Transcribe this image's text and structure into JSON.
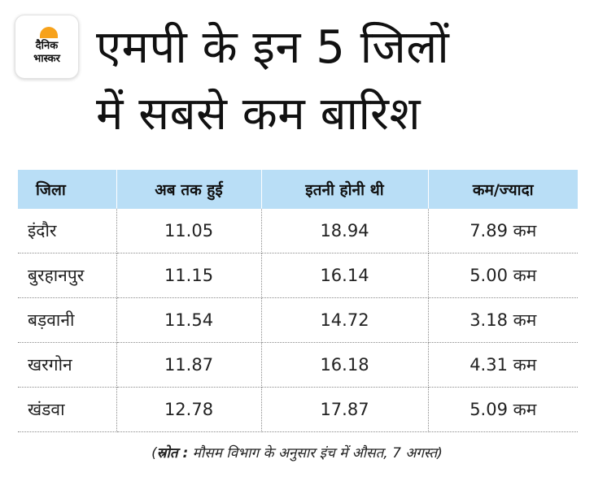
{
  "logo": {
    "line1": "दैनिक",
    "line2": "भास्कर",
    "accent": "#f7a21b"
  },
  "headline": {
    "line1": "एमपी के इन 5 जिलों",
    "line2": "में सबसे कम बारिश"
  },
  "table": {
    "header_color": "#b9def6",
    "columns": [
      "जिला",
      "अब तक हुई",
      "इतनी होनी थी",
      "कम/ज्यादा"
    ],
    "rows": [
      {
        "district": "इंदौर",
        "so_far": "11.05",
        "expected": "18.94",
        "diff": "7.89 कम"
      },
      {
        "district": "बुरहानपुर",
        "so_far": "11.15",
        "expected": "16.14",
        "diff": "5.00 कम"
      },
      {
        "district": "बड़वानी",
        "so_far": "11.54",
        "expected": "14.72",
        "diff": "3.18 कम"
      },
      {
        "district": "खरगोन",
        "so_far": "11.87",
        "expected": "16.18",
        "diff": "4.31 कम"
      },
      {
        "district": "खंडवा",
        "so_far": "12.78",
        "expected": "17.87",
        "diff": "5.09 कम"
      }
    ]
  },
  "source": {
    "open": "(",
    "label": "स्रोत :",
    "text": " मौसम विभाग के अनुसार इंच में औसत, 7 अगस्त)"
  }
}
